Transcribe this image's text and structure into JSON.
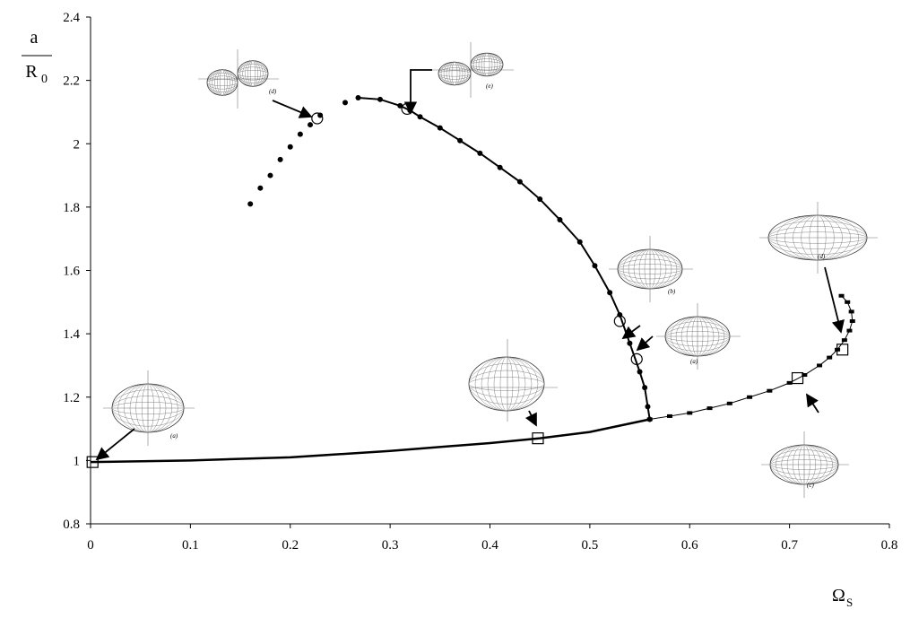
{
  "chart_data": {
    "type": "line",
    "ylabel_numerator": "a",
    "ylabel_denominator": "R",
    "ylabel_denominator_sub": "0",
    "xlabel": "Ω",
    "xlabel_sub": "S",
    "xlim": [
      0,
      0.8
    ],
    "xticks": [
      0,
      0.1,
      0.2,
      0.3,
      0.4,
      0.5,
      0.6,
      0.7,
      0.8
    ],
    "ylim": [
      0.8,
      2.4
    ],
    "yticks": [
      0.8,
      1,
      1.2,
      1.4,
      1.6,
      1.8,
      2,
      2.2,
      2.4
    ],
    "grid": false,
    "series": [
      {
        "color": "#000000",
        "line": true,
        "line_width": 2.5,
        "marker": "none",
        "x": [
          0,
          0.1,
          0.2,
          0.3,
          0.4,
          0.45,
          0.5,
          0.56
        ],
        "values": [
          0.995,
          1.0,
          1.01,
          1.03,
          1.055,
          1.07,
          1.09,
          1.13
        ]
      },
      {
        "color": "#000000",
        "line": true,
        "line_width": 2,
        "marker": "circle",
        "x": [
          0.268,
          0.29,
          0.31,
          0.32,
          0.33,
          0.35,
          0.37,
          0.39,
          0.41,
          0.43,
          0.45,
          0.47,
          0.49,
          0.505,
          0.52,
          0.53,
          0.54,
          0.55,
          0.555,
          0.558,
          0.56
        ],
        "values": [
          2.145,
          2.14,
          2.12,
          2.105,
          2.085,
          2.05,
          2.01,
          1.97,
          1.925,
          1.88,
          1.825,
          1.76,
          1.69,
          1.615,
          1.53,
          1.46,
          1.37,
          1.28,
          1.23,
          1.17,
          1.13
        ]
      },
      {
        "color": "#000000",
        "line": true,
        "line_width": 1,
        "marker": "square",
        "x": [
          0.56,
          0.58,
          0.6,
          0.62,
          0.64,
          0.66,
          0.68,
          0.7,
          0.715,
          0.73,
          0.74,
          0.748,
          0.755,
          0.76,
          0.763,
          0.762,
          0.758,
          0.752
        ],
        "values": [
          1.13,
          1.14,
          1.15,
          1.165,
          1.18,
          1.2,
          1.22,
          1.245,
          1.27,
          1.3,
          1.325,
          1.35,
          1.38,
          1.41,
          1.44,
          1.47,
          1.5,
          1.52
        ]
      },
      {
        "color": "#000000",
        "line": false,
        "line_width": 0,
        "marker": "circle",
        "x": [
          0.16,
          0.17,
          0.18,
          0.19,
          0.2,
          0.21,
          0.22,
          0.23,
          0.255
        ],
        "values": [
          1.81,
          1.86,
          1.9,
          1.95,
          1.99,
          2.03,
          2.06,
          2.09,
          2.13
        ]
      },
      {
        "color": "#000000",
        "line": false,
        "line_width": 0,
        "marker": "open-circle",
        "x": [
          0.227,
          0.317,
          0.53,
          0.547
        ],
        "values": [
          2.08,
          2.11,
          1.44,
          1.32
        ]
      },
      {
        "color": "#000000",
        "line": false,
        "line_width": 0,
        "marker": "open-square",
        "x": [
          0.002,
          0.448,
          0.708,
          0.753
        ],
        "values": [
          0.995,
          1.07,
          1.26,
          1.35
        ]
      }
    ],
    "annotations": [
      "(a)",
      "(d)",
      "(e)",
      "(b)",
      "(a)",
      "(d)",
      "(c)"
    ]
  }
}
